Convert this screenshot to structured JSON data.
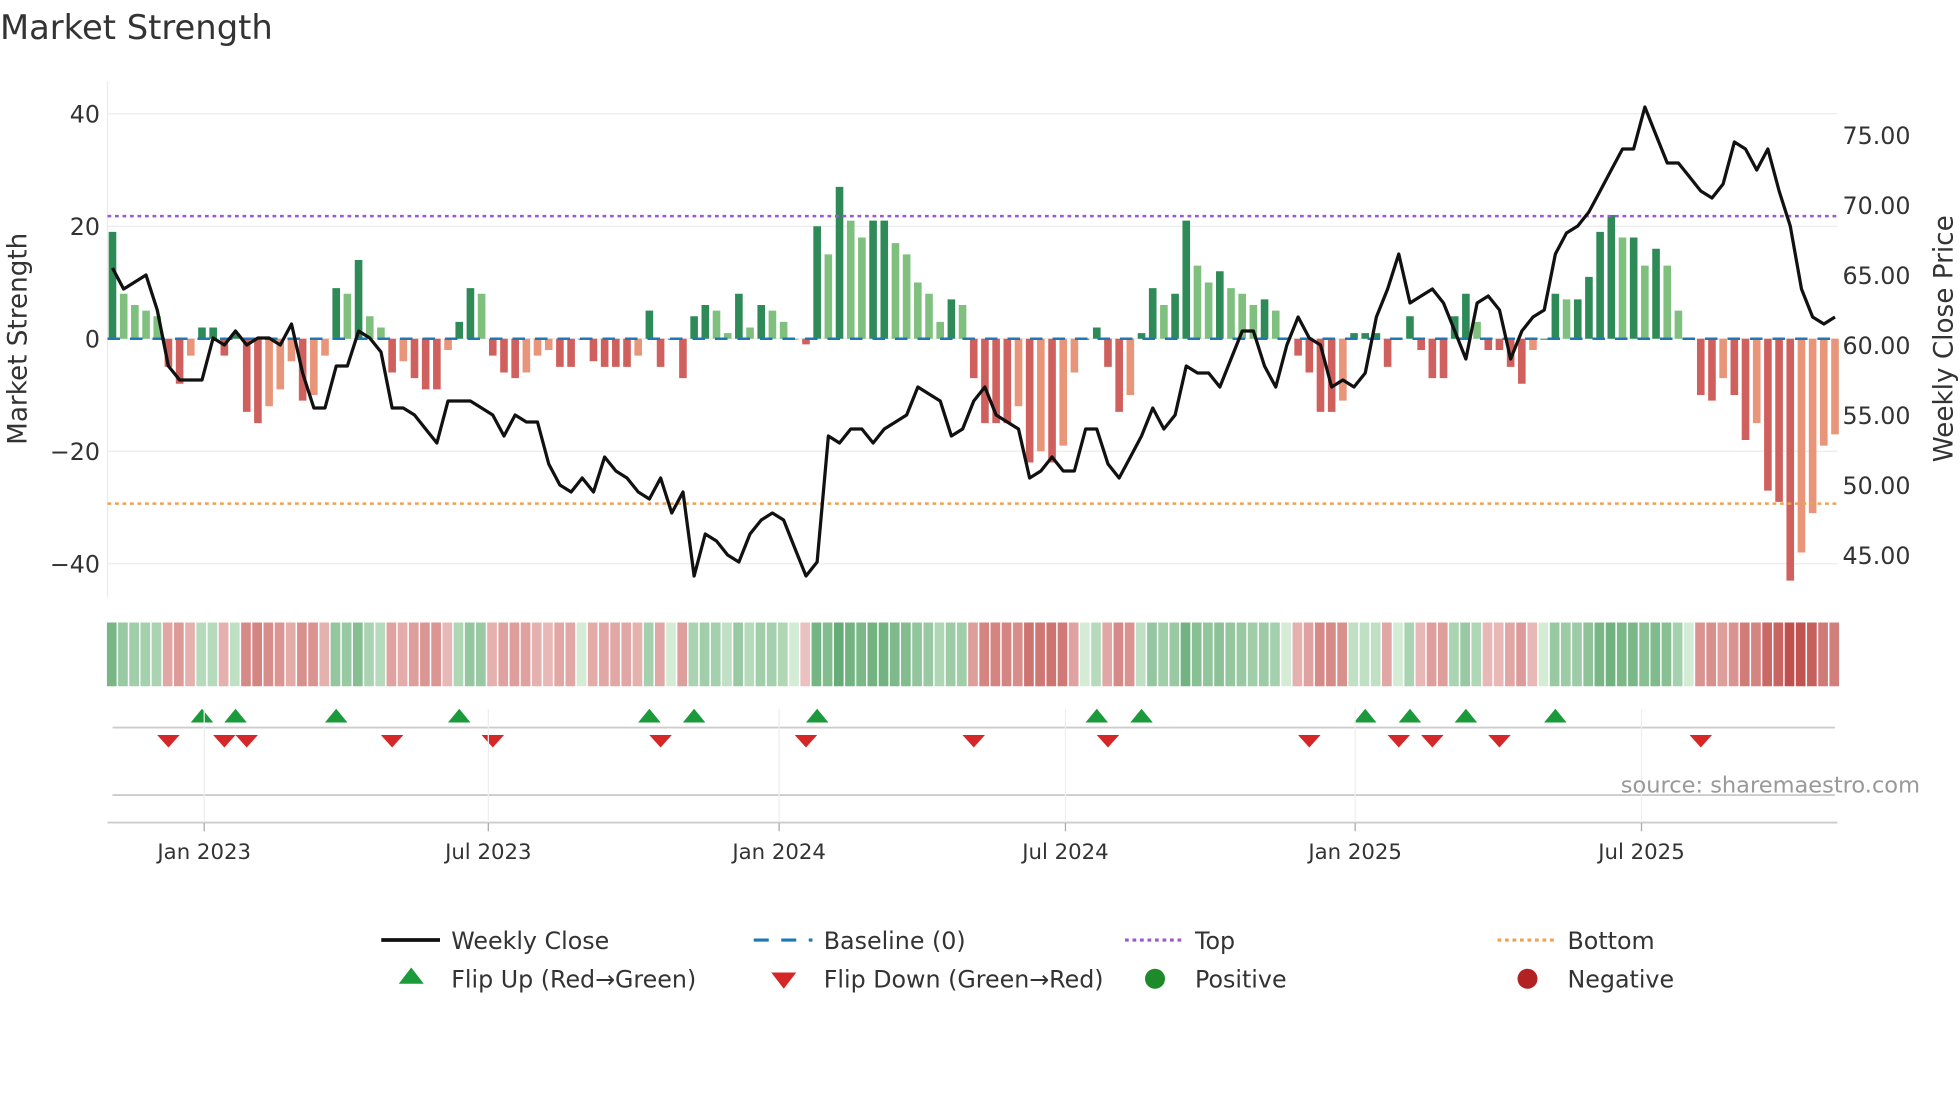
{
  "chart_data": {
    "type": "bar",
    "title": "Market Strength",
    "ylabel": "Market Strength",
    "y2label": "Weekly Close Price",
    "ylim": [
      -46,
      46
    ],
    "y2lim": [
      41.5,
      79
    ],
    "yticks": [
      40,
      20,
      0,
      -20,
      -40
    ],
    "ytick_labels": [
      "40",
      "20",
      "0",
      "−20",
      "−40"
    ],
    "y2ticks": [
      75,
      70,
      65,
      60,
      55,
      50,
      45
    ],
    "y2tick_labels": [
      "75.00",
      "70.00",
      "65.00",
      "60.00",
      "55.00",
      "50.00",
      "45.00"
    ],
    "start_week": "2022-11-04",
    "xticks": [
      {
        "label": "Jan 2023",
        "week": 8.2
      },
      {
        "label": "Jul 2023",
        "week": 33.6
      },
      {
        "label": "Jan 2024",
        "week": 59.6
      },
      {
        "label": "Jul 2024",
        "week": 85.2
      },
      {
        "label": "Jan 2025",
        "week": 111.1
      },
      {
        "label": "Jul 2025",
        "week": 136.7
      }
    ],
    "top_level": 21.8,
    "bottom_level": -29.3,
    "baseline": 0,
    "strength": [
      19,
      8,
      6,
      5,
      4,
      -5,
      -8,
      -3,
      2,
      2,
      -3,
      1,
      -13,
      -15,
      -12,
      -9,
      -4,
      -11,
      -10,
      -3,
      9,
      8,
      14,
      4,
      2,
      -6,
      -4,
      -7,
      -9,
      -9,
      -2,
      3,
      9,
      8,
      -3,
      -6,
      -7,
      -6,
      -3,
      -2,
      -5,
      -5,
      0,
      -4,
      -5,
      -5,
      -5,
      -3,
      5,
      -5,
      0,
      -7,
      4,
      6,
      5,
      1,
      8,
      2,
      6,
      5,
      3,
      0,
      -1,
      20,
      15,
      27,
      21,
      18,
      21,
      21,
      17,
      15,
      10,
      8,
      3,
      7,
      6,
      -7,
      -15,
      -15,
      -15,
      -12,
      -22,
      -20,
      -22,
      -19,
      -6,
      0,
      2,
      -5,
      -13,
      -10,
      1,
      9,
      6,
      8,
      21,
      13,
      10,
      12,
      9,
      8,
      6,
      7,
      5,
      0,
      -3,
      -6,
      -13,
      -13,
      -11,
      1,
      1,
      1,
      -5,
      0,
      4,
      -2,
      -7,
      -7,
      4,
      8,
      3,
      -2,
      -2,
      -5,
      -8,
      -2,
      0,
      8,
      7,
      7,
      11,
      19,
      22,
      18,
      18,
      13,
      16,
      13,
      5,
      0,
      -10,
      -11,
      -7,
      -10,
      -18,
      -15,
      -27,
      -29,
      -43,
      -38,
      -31,
      -19,
      -17
    ],
    "weekly_close": [
      65.5,
      64,
      64.5,
      65,
      62.5,
      58.5,
      57.5,
      57.5,
      57.5,
      60.5,
      60,
      61,
      60,
      60.5,
      60.5,
      60,
      61.5,
      58,
      55.5,
      55.5,
      58.5,
      58.5,
      61,
      60.5,
      59.5,
      55.5,
      55.5,
      55,
      54,
      53,
      56,
      56,
      56,
      55.5,
      55,
      53.5,
      55,
      54.5,
      54.5,
      51.5,
      50,
      49.5,
      50.5,
      49.5,
      52,
      51,
      50.5,
      49.5,
      49,
      50.5,
      48,
      49.5,
      43.5,
      46.5,
      46,
      45,
      44.5,
      46.5,
      47.5,
      48,
      47.5,
      45.5,
      43.5,
      44.5,
      53.5,
      53,
      54,
      54,
      53,
      54,
      54.5,
      55,
      57,
      56.5,
      56,
      53.5,
      54,
      56,
      57,
      55,
      54.5,
      54,
      50.5,
      51,
      52,
      51,
      51,
      54,
      54,
      51.5,
      50.5,
      52,
      53.5,
      55.5,
      54,
      55,
      58.5,
      58,
      58,
      57,
      59,
      61,
      61,
      58.5,
      57,
      60,
      62,
      60.5,
      60,
      57,
      57.5,
      57,
      58,
      62,
      64,
      66.5,
      63,
      63.5,
      64,
      63,
      61,
      59,
      63,
      63.5,
      62.5,
      59,
      61,
      62,
      62.5,
      66.5,
      68,
      68.5,
      69.5,
      71,
      72.5,
      74,
      74,
      77,
      75,
      73,
      73,
      72,
      71,
      70.5,
      71.5,
      74.5,
      74,
      72.5,
      74,
      71,
      68.5,
      64,
      62,
      61.5,
      62
    ],
    "flip_up_weeks": [
      8,
      11,
      20,
      31,
      48,
      52,
      63,
      88,
      92,
      112,
      116,
      121,
      129
    ],
    "flip_down_weeks": [
      5,
      10,
      12,
      25,
      34,
      49,
      62,
      77,
      89,
      107,
      115,
      118,
      124,
      142
    ],
    "colors": {
      "pos_strong": "#2e8b57",
      "pos_weak": "#7fc07f",
      "neg_strong": "#d0605e",
      "neg_weak": "#e8957a",
      "close_line": "#111111",
      "baseline": "#1f77b4",
      "top": "#9b59d0",
      "bottom": "#f0a050",
      "flip_up": "#1a9a3a",
      "flip_down": "#d62728",
      "positive": "#1e8a2a",
      "negative": "#b22222"
    },
    "legend_placement": "bottom",
    "legend": [
      {
        "label": "Weekly Close",
        "symbol": "line"
      },
      {
        "label": "Baseline (0)",
        "symbol": "dash"
      },
      {
        "label": "Top",
        "symbol": "dot"
      },
      {
        "label": "Bottom",
        "symbol": "dot-orange"
      },
      {
        "label": "Flip Up (Red→Green)",
        "symbol": "tri-up"
      },
      {
        "label": "Flip Down (Green→Red)",
        "symbol": "tri-down"
      },
      {
        "label": "Positive",
        "symbol": "circle-green"
      },
      {
        "label": "Negative",
        "symbol": "circle-red"
      }
    ],
    "source": "source: sharemaestro.com"
  }
}
